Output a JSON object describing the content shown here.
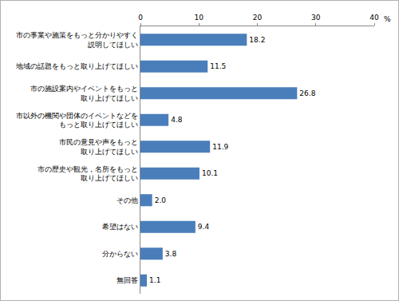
{
  "chart_data": {
    "type": "bar",
    "orientation": "horizontal",
    "categories": [
      "市の事業や施策をもっと分かりやすく\n説明してほしい",
      "地域の話題をもっと取り上げてほしい",
      "市の施設案内やイベントをもっと\n取り上げてほしい",
      "市以外の機関や団体のイベントなどを\nもっと取り上げてほしい",
      "市民の意見や声をもっと\n取り上げてほしい",
      "市の歴史や観光，名所をもっと\n取り上げてほしい",
      "その他",
      "希望はない",
      "分からない",
      "無回答"
    ],
    "values": [
      18.2,
      11.5,
      26.8,
      4.8,
      11.9,
      10.1,
      2.0,
      9.4,
      3.8,
      1.1
    ],
    "value_labels": [
      "18.2",
      "11.5",
      "26.8",
      "4.8",
      "11.9",
      "10.1",
      "2.0",
      "9.4",
      "3.8",
      "1.1"
    ],
    "data_labels": true,
    "color": "#4a7ebb",
    "x_label": "%",
    "xlim": [
      0,
      40
    ],
    "xticks": [
      0,
      10,
      20,
      30,
      40
    ],
    "grid": false
  }
}
